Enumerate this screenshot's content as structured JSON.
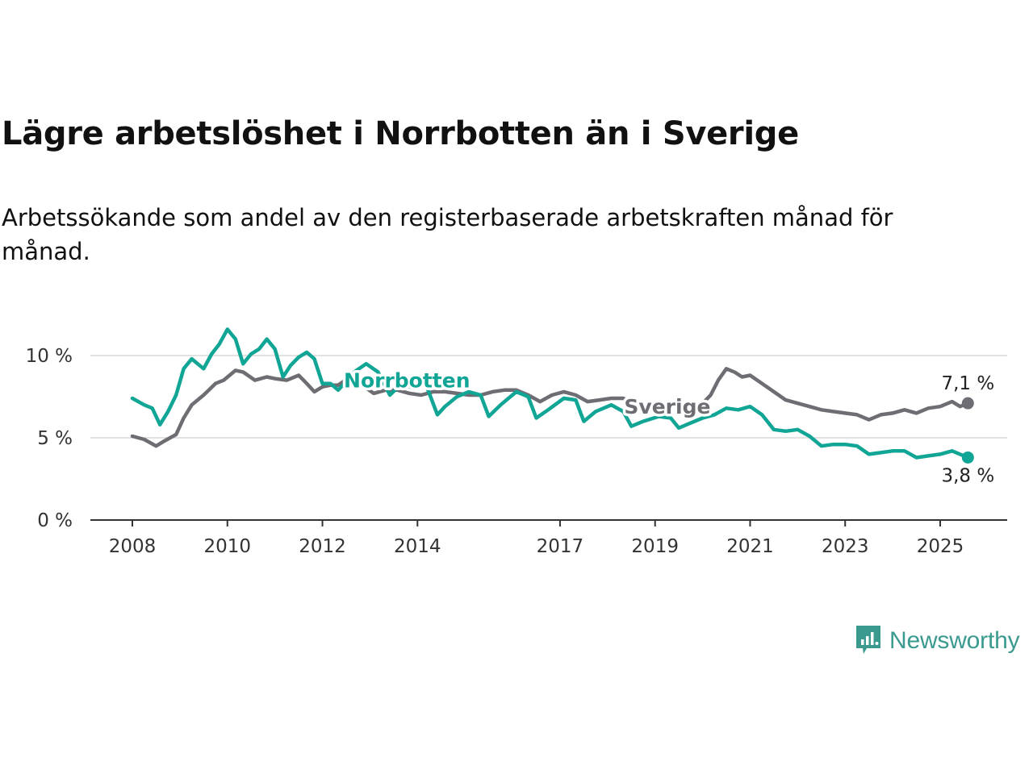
{
  "chart_data": {
    "type": "line",
    "title": "Lägre arbetslöshet i Norrbotten än i Sverige",
    "subtitle": "Arbetssökande som andel av den registerbaserade arbetskraften månad för månad.",
    "xlabel": "",
    "ylabel": "",
    "x_range": [
      2008.0,
      2025.583
    ],
    "x_ticks": [
      {
        "value": 2008,
        "label": "2008"
      },
      {
        "value": 2010,
        "label": "2010"
      },
      {
        "value": 2012,
        "label": "2012"
      },
      {
        "value": 2014,
        "label": "2014"
      },
      {
        "value": 2017,
        "label": "2017"
      },
      {
        "value": 2019,
        "label": "2019"
      },
      {
        "value": 2021,
        "label": "2021"
      },
      {
        "value": 2023,
        "label": "2023"
      },
      {
        "value": 2025,
        "label": "2025"
      }
    ],
    "ylim": [
      0,
      12
    ],
    "y_ticks": [
      {
        "value": 0,
        "label": "0 %"
      },
      {
        "value": 5,
        "label": "5 %"
      },
      {
        "value": 10,
        "label": "10 %"
      }
    ],
    "grid": "horizontal",
    "legend": "direct labels on lines",
    "series": [
      {
        "name": "Sverige",
        "color": "#6e6d73",
        "label_at": {
          "x": 2018.35,
          "y": 6.9
        },
        "end_label": "7,1 %",
        "x": [
          2008.0,
          2008.25,
          2008.5,
          2008.67,
          2008.92,
          2009.08,
          2009.25,
          2009.5,
          2009.75,
          2009.92,
          2010.17,
          2010.33,
          2010.58,
          2010.83,
          2011.0,
          2011.25,
          2011.5,
          2011.67,
          2011.83,
          2012.0,
          2012.17,
          2012.33,
          2012.58,
          2012.83,
          2013.08,
          2013.33,
          2013.58,
          2013.83,
          2014.08,
          2014.33,
          2014.58,
          2014.83,
          2015.08,
          2015.33,
          2015.58,
          2015.83,
          2016.08,
          2016.33,
          2016.58,
          2016.83,
          2017.08,
          2017.33,
          2017.58,
          2017.83,
          2018.08,
          2018.33,
          2018.58,
          2018.83,
          2019.08,
          2019.33,
          2019.58,
          2019.83,
          2020.0,
          2020.17,
          2020.33,
          2020.5,
          2020.67,
          2020.83,
          2021.0,
          2021.25,
          2021.5,
          2021.75,
          2022.0,
          2022.25,
          2022.5,
          2022.75,
          2023.0,
          2023.25,
          2023.5,
          2023.75,
          2024.0,
          2024.25,
          2024.5,
          2024.75,
          2025.0,
          2025.25,
          2025.42,
          2025.583
        ],
        "y": [
          5.1,
          4.9,
          4.5,
          4.8,
          5.2,
          6.2,
          7.0,
          7.6,
          8.3,
          8.5,
          9.1,
          9.0,
          8.5,
          8.7,
          8.6,
          8.5,
          8.8,
          8.3,
          7.8,
          8.1,
          8.2,
          8.2,
          8.7,
          8.2,
          7.7,
          7.9,
          7.9,
          7.7,
          7.6,
          7.8,
          7.8,
          7.7,
          7.6,
          7.6,
          7.8,
          7.9,
          7.9,
          7.6,
          7.2,
          7.6,
          7.8,
          7.6,
          7.2,
          7.3,
          7.4,
          7.4,
          7.0,
          6.9,
          6.9,
          6.9,
          6.9,
          6.9,
          7.1,
          7.6,
          8.5,
          9.2,
          9.0,
          8.7,
          8.8,
          8.3,
          7.8,
          7.3,
          7.1,
          6.9,
          6.7,
          6.6,
          6.5,
          6.4,
          6.1,
          6.4,
          6.5,
          6.7,
          6.5,
          6.8,
          6.9,
          7.2,
          6.9,
          7.1
        ]
      },
      {
        "name": "Norrbotten",
        "color": "#11a595",
        "label_at": {
          "x": 2012.45,
          "y": 8.5
        },
        "end_label": "3,8 %",
        "x": [
          2008.0,
          2008.25,
          2008.42,
          2008.58,
          2008.75,
          2008.92,
          2009.08,
          2009.25,
          2009.5,
          2009.67,
          2009.83,
          2010.0,
          2010.17,
          2010.33,
          2010.5,
          2010.67,
          2010.83,
          2011.0,
          2011.17,
          2011.33,
          2011.5,
          2011.67,
          2011.83,
          2012.0,
          2012.17,
          2012.33,
          2012.5,
          2012.67,
          2012.92,
          2013.17,
          2013.42,
          2013.67,
          2013.92,
          2014.17,
          2014.42,
          2014.58,
          2014.83,
          2015.08,
          2015.33,
          2015.5,
          2015.75,
          2016.08,
          2016.33,
          2016.5,
          2016.75,
          2017.08,
          2017.33,
          2017.5,
          2017.75,
          2018.08,
          2018.33,
          2018.5,
          2018.75,
          2019.08,
          2019.33,
          2019.5,
          2019.75,
          2020.0,
          2020.25,
          2020.5,
          2020.75,
          2021.0,
          2021.25,
          2021.5,
          2021.75,
          2022.0,
          2022.25,
          2022.5,
          2022.75,
          2023.0,
          2023.25,
          2023.5,
          2023.75,
          2024.0,
          2024.25,
          2024.5,
          2024.75,
          2025.0,
          2025.25,
          2025.42,
          2025.583
        ],
        "y": [
          7.4,
          7.0,
          6.8,
          5.8,
          6.6,
          7.6,
          9.2,
          9.8,
          9.2,
          10.1,
          10.7,
          11.6,
          11.0,
          9.5,
          10.1,
          10.4,
          11.0,
          10.4,
          8.7,
          9.4,
          9.9,
          10.2,
          9.8,
          8.3,
          8.3,
          7.9,
          8.4,
          9.0,
          9.5,
          9.0,
          7.6,
          8.3,
          8.0,
          8.3,
          6.4,
          6.9,
          7.5,
          7.8,
          7.6,
          6.3,
          7.0,
          7.8,
          7.5,
          6.2,
          6.7,
          7.4,
          7.3,
          6.0,
          6.6,
          7.0,
          6.6,
          5.7,
          6.0,
          6.3,
          6.2,
          5.6,
          5.9,
          6.2,
          6.4,
          6.8,
          6.7,
          6.9,
          6.4,
          5.5,
          5.4,
          5.5,
          5.1,
          4.5,
          4.6,
          4.6,
          4.5,
          4.0,
          4.1,
          4.2,
          4.2,
          3.8,
          3.9,
          4.0,
          4.2,
          4.0,
          3.8
        ]
      }
    ]
  },
  "branding": {
    "name": "Newsworthy",
    "icon": "newsworthy-logo-icon",
    "color": "#3b9a8f"
  }
}
